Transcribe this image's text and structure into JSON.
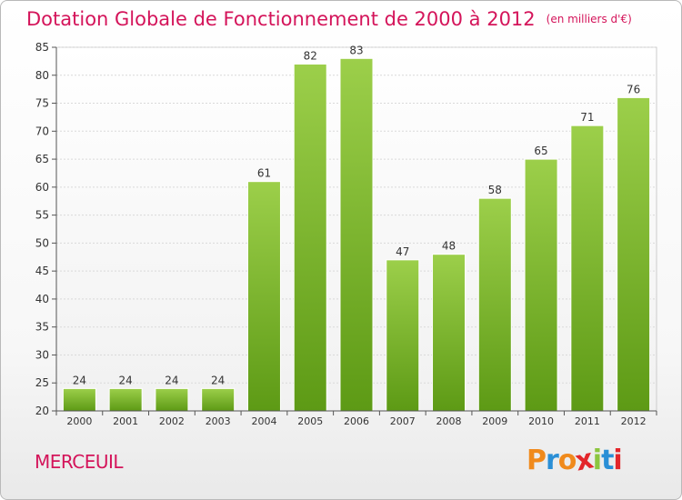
{
  "header": {
    "title": "Dotation Globale de Fonctionnement de 2000 à 2012",
    "subtitle": "(en milliers d'€)"
  },
  "footer": {
    "commune": "MERCEUIL",
    "logo": {
      "text": "Proxiti",
      "letter_colors": [
        "#f08a1c",
        "#2a8fd6",
        "#f08a1c",
        "#e3262b",
        "#8cc63f",
        "#2a8fd6",
        "#e3262b"
      ]
    }
  },
  "colors": {
    "bar_top": "#9ccf4a",
    "bar_bottom": "#5d9a15",
    "grid": "#d9d9d9",
    "axis": "#555555",
    "text": "#333333"
  },
  "chart_data": {
    "type": "bar",
    "categories": [
      "2000",
      "2001",
      "2002",
      "2003",
      "2004",
      "2005",
      "2006",
      "2007",
      "2008",
      "2009",
      "2010",
      "2011",
      "2012"
    ],
    "values": [
      24,
      24,
      24,
      24,
      61,
      82,
      83,
      47,
      48,
      58,
      65,
      71,
      76
    ],
    "title": "Dotation Globale de Fonctionnement de 2000 à 2012",
    "subtitle": "(en milliers d'€)",
    "ylim": [
      20,
      85
    ],
    "yticks": [
      20,
      25,
      30,
      35,
      40,
      45,
      50,
      55,
      60,
      65,
      70,
      75,
      80,
      85
    ],
    "grid": true,
    "legend": "none"
  }
}
